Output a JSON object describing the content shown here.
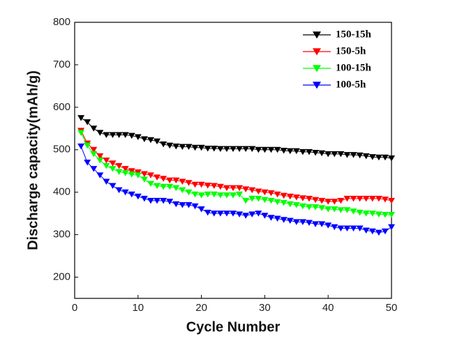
{
  "chart_data": {
    "type": "line",
    "xlabel": "Cycle Number",
    "ylabel": "Discharge capacity(mAh/g)",
    "x": [
      1,
      2,
      3,
      4,
      5,
      6,
      7,
      8,
      9,
      10,
      11,
      12,
      13,
      14,
      15,
      16,
      17,
      18,
      19,
      20,
      21,
      22,
      23,
      24,
      25,
      26,
      27,
      28,
      29,
      30,
      31,
      32,
      33,
      34,
      35,
      36,
      37,
      38,
      39,
      40,
      41,
      42,
      43,
      44,
      45,
      46,
      47,
      48,
      49,
      50
    ],
    "xlim": [
      0,
      50
    ],
    "xticks": [
      0,
      10,
      20,
      30,
      40,
      50
    ],
    "ylim": [
      150,
      800
    ],
    "yticks": [
      200,
      300,
      400,
      500,
      600,
      700,
      800
    ],
    "legend_position": "upper right",
    "series": [
      {
        "name": "150-15h",
        "color": "#000000",
        "values": [
          575,
          565,
          550,
          540,
          535,
          535,
          535,
          535,
          533,
          530,
          525,
          523,
          520,
          513,
          510,
          508,
          507,
          507,
          505,
          505,
          503,
          503,
          502,
          502,
          502,
          502,
          502,
          502,
          500,
          500,
          500,
          500,
          498,
          497,
          497,
          495,
          495,
          493,
          492,
          490,
          490,
          490,
          488,
          488,
          487,
          485,
          483,
          482,
          482,
          480
        ]
      },
      {
        "name": "150-5h",
        "color": "#ff0000",
        "values": [
          545,
          515,
          500,
          485,
          475,
          468,
          462,
          455,
          450,
          447,
          443,
          440,
          435,
          432,
          428,
          428,
          425,
          422,
          418,
          418,
          416,
          415,
          413,
          410,
          410,
          410,
          407,
          405,
          402,
          400,
          398,
          395,
          392,
          390,
          388,
          386,
          385,
          382,
          380,
          378,
          378,
          380,
          385,
          385,
          385,
          385,
          385,
          385,
          383,
          380
        ]
      },
      {
        "name": "100-15h",
        "color": "#00ff00",
        "values": [
          540,
          510,
          490,
          475,
          462,
          455,
          448,
          445,
          442,
          440,
          430,
          420,
          415,
          413,
          413,
          410,
          405,
          400,
          395,
          393,
          395,
          395,
          393,
          393,
          393,
          395,
          380,
          385,
          385,
          382,
          380,
          377,
          375,
          372,
          370,
          367,
          365,
          365,
          363,
          360,
          360,
          358,
          358,
          355,
          352,
          350,
          350,
          348,
          347,
          347
        ]
      },
      {
        "name": "100-5h",
        "color": "#0000ff",
        "values": [
          508,
          470,
          455,
          440,
          425,
          415,
          405,
          400,
          395,
          390,
          385,
          380,
          380,
          380,
          378,
          372,
          370,
          370,
          367,
          360,
          352,
          350,
          350,
          350,
          350,
          348,
          345,
          348,
          350,
          345,
          340,
          338,
          335,
          333,
          330,
          330,
          328,
          325,
          325,
          322,
          318,
          315,
          315,
          315,
          315,
          310,
          308,
          305,
          308,
          318
        ]
      }
    ]
  }
}
